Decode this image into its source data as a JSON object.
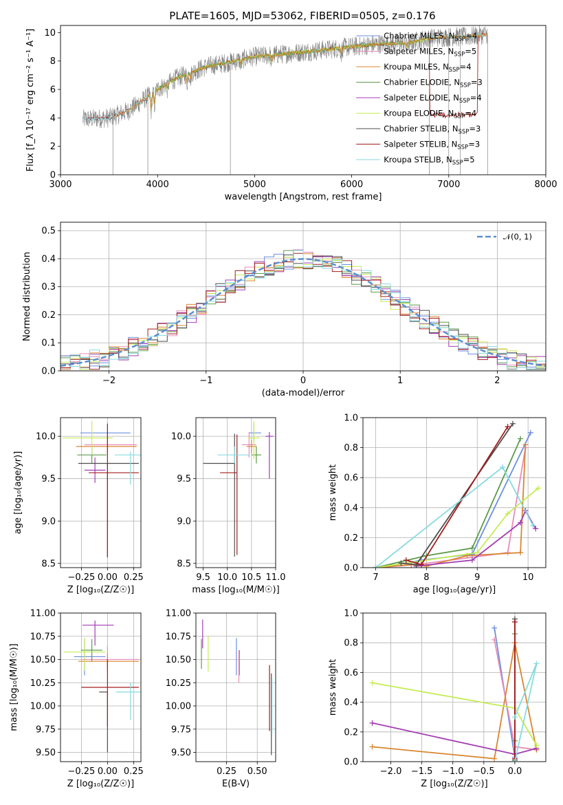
{
  "figure_title": "PLATE=1605, MJD=53062, FIBERID=0505, z=0.176",
  "model_colors": {
    "chabrier_miles": "#6a8fe0",
    "salpeter_miles": "#e88cb8",
    "kroupa_miles": "#d8862f",
    "chabrier_elodie": "#5c9a4a",
    "salpeter_elodie": "#a33bb2",
    "kroupa_elodie": "#c5ec55",
    "chabrier_stelib": "#4d4d4d",
    "salpeter_stelib": "#a31c1c",
    "kroupa_stelib": "#86dbe0"
  },
  "chart_data": [
    {
      "id": "spectrum",
      "type": "line",
      "xlabel": "wavelength [Angstrom, rest frame]",
      "ylabel": "Flux [f_λ 10⁻¹⁷ erg cm⁻² s⁻¹ A⁻¹]",
      "xlim": [
        3000,
        8000
      ],
      "ylim": [
        0,
        10.5
      ],
      "xticks": [
        "3000",
        "4000",
        "5000",
        "6000",
        "7000",
        "8000"
      ],
      "yticks": [
        "0",
        "2",
        "4",
        "6",
        "8",
        "10"
      ],
      "legend_placement": "top-right",
      "legend": [
        "Chabrier MILES, N_SSP=4",
        "Salpeter MILES, N_SSP=5",
        "Kroupa MILES, N_SSP=4",
        "Chabrier ELODIE, N_SSP=3",
        "Salpeter ELODIE, N_SSP=4",
        "Kroupa ELODIE, N_SSP=4",
        "Chabrier STELIB, N_SSP=3",
        "Salpeter STELIB, N_SSP=3",
        "Kroupa STELIB, N_SSP=5"
      ],
      "legend_main": [
        "Chabrier MILES, N",
        "Salpeter MILES, N",
        "Kroupa MILES, N",
        "Chabrier ELODIE, N",
        "Salpeter ELODIE, N",
        "Kroupa ELODIE, N",
        "Chabrier STELIB, N",
        "Salpeter STELIB, N",
        "Kroupa STELIB, N"
      ],
      "legend_sub": "SSP",
      "legend_n": [
        "=4",
        "=5",
        "=4",
        "=3",
        "=4",
        "=4",
        "=3",
        "=3",
        "=5"
      ],
      "continuum_x": [
        3230,
        3500,
        3700,
        4000,
        4200,
        4500,
        4800,
        5000,
        5300,
        5600,
        6000,
        6300,
        6600,
        6800,
        7000,
        7200,
        7400
      ],
      "continuum_y": [
        3.9,
        4.0,
        4.5,
        6.0,
        6.8,
        7.6,
        8.0,
        8.3,
        8.5,
        8.7,
        9.0,
        9.2,
        9.3,
        9.6,
        9.7,
        9.7,
        9.9
      ],
      "series": [
        {
          "name": "data",
          "color": "#808080",
          "xrange": [
            3230,
            7400
          ]
        },
        {
          "name": "Salpeter STELIB, N_SSP=3",
          "color": "#a31c1c",
          "xrange": [
            3230,
            7400
          ]
        },
        {
          "name": "Kroupa STELIB, N_SSP=5",
          "color": "#86dbe0",
          "xrange": [
            3230,
            7400
          ]
        },
        {
          "name": "Kroupa ELODIE, N_SSP=4",
          "color": "#c5ec55",
          "xrange": [
            3900,
            6800
          ]
        },
        {
          "name": "Chabrier ELODIE, N_SSP=3",
          "color": "#5c9a4a",
          "xrange": [
            3900,
            6800
          ]
        },
        {
          "name": "Kroupa MILES, N_SSP=4",
          "color": "#d8862f",
          "xrange": [
            3540,
            7400
          ]
        }
      ]
    },
    {
      "id": "residuals",
      "type": "histogram",
      "xlabel": "(data-model)/error",
      "ylabel": "Normed distribution",
      "xlim": [
        -2.5,
        2.5
      ],
      "ylim": [
        0,
        0.53
      ],
      "xticks": [
        "−2",
        "−1",
        "0",
        "1",
        "2"
      ],
      "yticks": [
        "0.0",
        "0.1",
        "0.2",
        "0.3",
        "0.4",
        "0.5"
      ],
      "legend_placement": "top-right",
      "gaussian_label": "𝒩(0, 1)",
      "bin_edges_start": -2.5,
      "bin_width": 0.1,
      "series_colors": [
        "#6a8fe0",
        "#e88cb8",
        "#d8862f",
        "#5c9a4a",
        "#a33bb2",
        "#c5ec55",
        "#4d4d4d",
        "#a31c1c",
        "#86dbe0"
      ]
    },
    {
      "id": "age_vs_z",
      "type": "errorbar",
      "xlabel": "Z [log₁₀(Z/Z☉)]",
      "ylabel": "age  [log₁₀(age/yr)]",
      "xlim": [
        -0.45,
        0.32
      ],
      "ylim": [
        8.45,
        10.22
      ],
      "xticks": [
        "−0.25",
        "0.00",
        "0.25"
      ],
      "yticks": [
        "8.5",
        "9.0",
        "9.5",
        "10.0"
      ],
      "points": [
        {
          "color": "#6a8fe0",
          "x": 0.0,
          "xerr": [
            0.26,
            0.22
          ],
          "y": 10.04,
          "yerr": [
            0.09,
            0.09
          ]
        },
        {
          "color": "#e88cb8",
          "x": 0.0,
          "xerr": [
            0.22,
            0.28
          ],
          "y": 9.9,
          "yerr": [
            0.12,
            0.12
          ]
        },
        {
          "color": "#d8862f",
          "x": 0.0,
          "xerr": [
            0.3,
            0.28
          ],
          "y": 9.88,
          "yerr": [
            0.08,
            0.08
          ]
        },
        {
          "color": "#5c9a4a",
          "x": -0.15,
          "xerr": [
            0.14,
            0.14
          ],
          "y": 9.78,
          "yerr": [
            0.1,
            0.1
          ]
        },
        {
          "color": "#a33bb2",
          "x": -0.12,
          "xerr": [
            0.1,
            0.1
          ],
          "y": 9.6,
          "yerr": [
            0.15,
            0.15
          ]
        },
        {
          "color": "#c5ec55",
          "x": -0.15,
          "xerr": [
            0.28,
            0.2
          ],
          "y": 9.98,
          "yerr": [
            0.2,
            0.2
          ]
        },
        {
          "color": "#4d4d4d",
          "x": 0.0,
          "xerr": [
            0.28,
            0.3
          ],
          "y": 9.68,
          "yerr": [
            1.1,
            0.0
          ]
        },
        {
          "color": "#a31c1c",
          "x": 0.0,
          "xerr": [
            0.18,
            0.3
          ],
          "y": 9.57,
          "yerr": [
            1.0,
            0.58
          ]
        },
        {
          "color": "#86dbe0",
          "x": 0.22,
          "xerr": [
            0.15,
            0.1
          ],
          "y": 9.78,
          "yerr": [
            0.35,
            0.04
          ]
        }
      ]
    },
    {
      "id": "age_vs_mass",
      "type": "errorbar",
      "xlabel": "mass [log₁₀(M/M☉)]",
      "ylabel": "",
      "xlim": [
        9.35,
        11.0
      ],
      "ylim": [
        8.45,
        10.22
      ],
      "xticks": [
        "9.5",
        "10.0",
        "10.5",
        "11.0"
      ],
      "yticks": [
        "8.5",
        "9.0",
        "9.5",
        "10.0"
      ],
      "points": [
        {
          "color": "#6a8fe0",
          "x": 10.55,
          "xerr": [
            0.1,
            0.15
          ],
          "y": 10.04,
          "yerr": [
            0.1,
            0.1
          ]
        },
        {
          "color": "#e88cb8",
          "x": 10.45,
          "xerr": [
            0.15,
            0.15
          ],
          "y": 9.9,
          "yerr": [
            0.15,
            0.15
          ]
        },
        {
          "color": "#d8862f",
          "x": 10.5,
          "xerr": [
            0.1,
            0.1
          ],
          "y": 9.88,
          "yerr": [
            0.08,
            0.08
          ]
        },
        {
          "color": "#5c9a4a",
          "x": 10.6,
          "xerr": [
            0.1,
            0.1
          ],
          "y": 9.78,
          "yerr": [
            0.1,
            0.1
          ]
        },
        {
          "color": "#a33bb2",
          "x": 10.87,
          "xerr": [
            0.08,
            0.08
          ],
          "y": 10.0,
          "yerr": [
            0.5,
            0.05
          ]
        },
        {
          "color": "#c5ec55",
          "x": 10.55,
          "xerr": [
            0.12,
            0.12
          ],
          "y": 9.98,
          "yerr": [
            0.25,
            0.2
          ]
        },
        {
          "color": "#4d4d4d",
          "x": 10.15,
          "xerr": [
            0.65,
            0.0
          ],
          "y": 9.68,
          "yerr": [
            1.1,
            0.35
          ]
        },
        {
          "color": "#a31c1c",
          "x": 10.2,
          "xerr": [
            0.35,
            0.0
          ],
          "y": 9.57,
          "yerr": [
            0.97,
            0.45
          ]
        },
        {
          "color": "#86dbe0",
          "x": 10.15,
          "xerr": [
            0.35,
            0.3
          ],
          "y": 9.78,
          "yerr": [
            0.1,
            0.1
          ]
        }
      ]
    },
    {
      "id": "massweight_vs_age",
      "type": "line",
      "xlabel": "age  [log₁₀(age/yr)]",
      "ylabel": "mass weight",
      "xlim": [
        6.75,
        10.35
      ],
      "ylim": [
        0,
        1.0
      ],
      "xticks": [
        "7",
        "8",
        "9",
        "10"
      ],
      "yticks": [
        "0.0",
        "0.2",
        "0.4",
        "0.6",
        "0.8",
        "1.0"
      ],
      "series": [
        {
          "color": "#6a8fe0",
          "x": [
            7.0,
            7.6,
            7.9,
            8.9,
            10.05
          ],
          "y": [
            0.0,
            0.03,
            0.05,
            0.09,
            0.9
          ]
        },
        {
          "color": "#e88cb8",
          "x": [
            7.0,
            7.8,
            9.6,
            9.95
          ],
          "y": [
            0.0,
            0.02,
            0.1,
            0.8
          ]
        },
        {
          "color": "#d8862f",
          "x": [
            7.0,
            7.7,
            8.0,
            8.8,
            9.85,
            9.95
          ],
          "y": [
            0.0,
            0.02,
            0.01,
            0.08,
            0.1,
            0.82
          ]
        },
        {
          "color": "#5c9a4a",
          "x": [
            7.0,
            8.0,
            8.9,
            9.85
          ],
          "y": [
            0.0,
            0.08,
            0.13,
            0.86
          ]
        },
        {
          "color": "#a33bb2",
          "x": [
            7.8,
            8.9,
            9.85,
            9.95,
            10.15
          ],
          "y": [
            0.01,
            0.05,
            0.3,
            0.38,
            0.26
          ]
        },
        {
          "color": "#c5ec55",
          "x": [
            7.0,
            9.0,
            9.6,
            10.2
          ],
          "y": [
            0.0,
            0.1,
            0.36,
            0.53
          ]
        },
        {
          "color": "#4d4d4d",
          "x": [
            7.5,
            7.8,
            9.7
          ],
          "y": [
            0.03,
            0.02,
            0.96
          ]
        },
        {
          "color": "#a31c1c",
          "x": [
            7.6,
            7.9,
            9.6
          ],
          "y": [
            0.05,
            0.02,
            0.94
          ]
        },
        {
          "color": "#86dbe0",
          "x": [
            7.0,
            9.5,
            10.1
          ],
          "y": [
            0.0,
            0.67,
            0.28
          ]
        }
      ]
    },
    {
      "id": "mass_vs_z",
      "type": "errorbar",
      "xlabel": "Z [log₁₀(Z/Z☉)]",
      "ylabel": "mass [log₁₀(M/M☉)]",
      "xlim": [
        -0.45,
        0.32
      ],
      "ylim": [
        9.4,
        11.0
      ],
      "xticks": [
        "−0.25",
        "0.00",
        "0.25"
      ],
      "yticks": [
        "9.50",
        "9.75",
        "10.00",
        "10.25",
        "10.50",
        "10.75",
        "11.00"
      ],
      "points": [
        {
          "color": "#6a8fe0",
          "x": -0.22,
          "xerr": [
            0.1,
            0.2
          ],
          "y": 10.53,
          "yerr": [
            0.2,
            0.2
          ]
        },
        {
          "color": "#e88cb8",
          "x": 0.0,
          "xerr": [
            0.25,
            0.3
          ],
          "y": 10.5,
          "yerr": [
            0.15,
            0.15
          ]
        },
        {
          "color": "#d8862f",
          "x": 0.0,
          "xerr": [
            0.28,
            0.3
          ],
          "y": 10.48,
          "yerr": [
            0.08,
            0.08
          ]
        },
        {
          "color": "#5c9a4a",
          "x": -0.15,
          "xerr": [
            0.1,
            0.1
          ],
          "y": 10.6,
          "yerr": [
            0.12,
            0.12
          ]
        },
        {
          "color": "#a33bb2",
          "x": -0.12,
          "xerr": [
            0.12,
            0.18
          ],
          "y": 10.87,
          "yerr": [
            0.22,
            0.05
          ]
        },
        {
          "color": "#c5ec55",
          "x": -0.22,
          "xerr": [
            0.2,
            0.2
          ],
          "y": 10.58,
          "yerr": [
            0.2,
            0.15
          ]
        },
        {
          "color": "#4d4d4d",
          "x": 0.0,
          "xerr": [
            0.08,
            0.0
          ],
          "y": 10.15,
          "yerr": [
            0.65,
            0.0
          ]
        },
        {
          "color": "#a31c1c",
          "x": 0.0,
          "xerr": [
            0.25,
            0.3
          ],
          "y": 10.2,
          "yerr": [
            0.42,
            0.3
          ]
        },
        {
          "color": "#86dbe0",
          "x": 0.22,
          "xerr": [
            0.14,
            0.12
          ],
          "y": 10.15,
          "yerr": [
            0.3,
            0.1
          ]
        }
      ]
    },
    {
      "id": "mass_vs_ebv",
      "type": "errorbar",
      "xlabel": "E(B-V)",
      "ylabel": "",
      "xlim": [
        0.0,
        0.65
      ],
      "ylim": [
        9.4,
        11.0
      ],
      "xticks": [
        "0.25",
        "0.50"
      ],
      "yticks": [
        "9.50",
        "9.75",
        "10.00",
        "10.25",
        "10.50",
        "10.75",
        "11.00"
      ],
      "points": [
        {
          "color": "#6a8fe0",
          "x": 0.33,
          "y": 10.53,
          "yerr": [
            0.2,
            0.2
          ]
        },
        {
          "color": "#e88cb8",
          "x": 0.35,
          "y": 10.45,
          "yerr": [
            0.2,
            0.15
          ]
        },
        {
          "color": "#d8862f",
          "x": 0.355,
          "y": 10.48,
          "yerr": [
            0.15,
            0.12
          ]
        },
        {
          "color": "#5c9a4a",
          "x": 0.045,
          "y": 10.6,
          "yerr": [
            0.2,
            0.12
          ]
        },
        {
          "color": "#a33bb2",
          "x": 0.055,
          "y": 10.87,
          "yerr": [
            0.25,
            0.06
          ]
        },
        {
          "color": "#c5ec55",
          "x": 0.1,
          "y": 10.55,
          "yerr": [
            0.18,
            0.2
          ]
        },
        {
          "color": "#4d4d4d",
          "x": 0.615,
          "y": 10.15,
          "yerr": [
            0.68,
            0.2
          ]
        },
        {
          "color": "#a31c1c",
          "x": 0.6,
          "y": 10.2,
          "yerr": [
            0.47,
            0.24
          ]
        },
        {
          "color": "#86dbe0",
          "x": 0.62,
          "y": 10.0,
          "yerr": [
            0.3,
            0.3
          ]
        }
      ]
    },
    {
      "id": "massweight_vs_z",
      "type": "line",
      "xlabel": "Z [log₁₀(Z/Z☉)]",
      "ylabel": "mass weight",
      "xlim": [
        -2.45,
        0.5
      ],
      "ylim": [
        0,
        1.0
      ],
      "xticks": [
        "−2.0",
        "−1.5",
        "−1.0",
        "−0.5",
        "0.0"
      ],
      "yticks": [
        "0.0",
        "0.2",
        "0.4",
        "0.6",
        "0.8",
        "1.0"
      ],
      "series": [
        {
          "color": "#6a8fe0",
          "x": [
            -0.33,
            0.0,
            0.0
          ],
          "y": [
            0.9,
            0.03,
            0.05
          ]
        },
        {
          "color": "#e88cb8",
          "x": [
            -0.33,
            0.0,
            0.35
          ],
          "y": [
            0.82,
            0.1,
            0.08
          ]
        },
        {
          "color": "#d8862f",
          "x": [
            -2.3,
            -0.33,
            0.0,
            0.35
          ],
          "y": [
            0.1,
            0.02,
            0.8,
            0.08
          ]
        },
        {
          "color": "#5c9a4a",
          "x": [
            0.0,
            0.0,
            0.0
          ],
          "y": [
            0.86,
            0.14,
            0.01
          ]
        },
        {
          "color": "#a33bb2",
          "x": [
            -2.3,
            0.0,
            0.35
          ],
          "y": [
            0.26,
            0.05,
            0.09
          ]
        },
        {
          "color": "#c5ec55",
          "x": [
            -2.3,
            0.0,
            0.35
          ],
          "y": [
            0.53,
            0.36,
            0.11
          ]
        },
        {
          "color": "#4d4d4d",
          "x": [
            0.0,
            0.0
          ],
          "y": [
            0.96,
            0.01
          ]
        },
        {
          "color": "#a31c1c",
          "x": [
            0.0,
            0.0
          ],
          "y": [
            0.94,
            0.02
          ]
        },
        {
          "color": "#86dbe0",
          "x": [
            0.0,
            0.35,
            0.0
          ],
          "y": [
            0.0,
            0.66,
            0.3
          ]
        }
      ]
    }
  ]
}
